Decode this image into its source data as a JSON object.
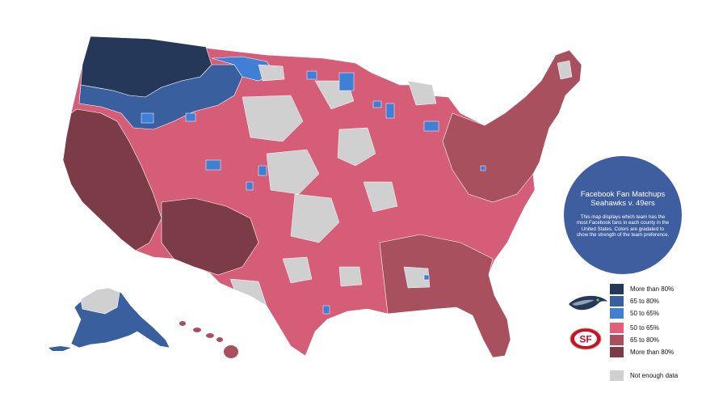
{
  "info": {
    "title_line1": "Facebook Fan Matchups",
    "title_line2": "Seahawks v. 49ers",
    "body": "This map displays which team has the most Facebook fans in each county in the United States. Colors are gradated to show the strength of the team preference."
  },
  "legend": {
    "seahawks": [
      {
        "label": "More than 80%",
        "color": "#25385a"
      },
      {
        "label": "65 to 80%",
        "color": "#3a5f9e"
      },
      {
        "label": "50 to 65%",
        "color": "#3f7fd6"
      }
    ],
    "niners": [
      {
        "label": "50 to 65%",
        "color": "#e0607a"
      },
      {
        "label": "65 to 80%",
        "color": "#a9505f"
      },
      {
        "label": "More than 80%",
        "color": "#7b3c48"
      }
    ],
    "no_data": {
      "label": "Not enough data",
      "color": "#d0d0d0"
    }
  },
  "colors": {
    "seahawks_80": "#25385a",
    "seahawks_65": "#3a5f9e",
    "seahawks_50": "#3f7fd6",
    "niners_50": "#e0607a",
    "niners_65": "#a9505f",
    "niners_80": "#7b3c48",
    "no_data": "#d0d0d0",
    "info_circle": "#3f5ea0"
  },
  "logos": {
    "seahawks": "seahawks-logo-icon",
    "niners": "49ers-logo-icon",
    "niners_text": "SF"
  }
}
